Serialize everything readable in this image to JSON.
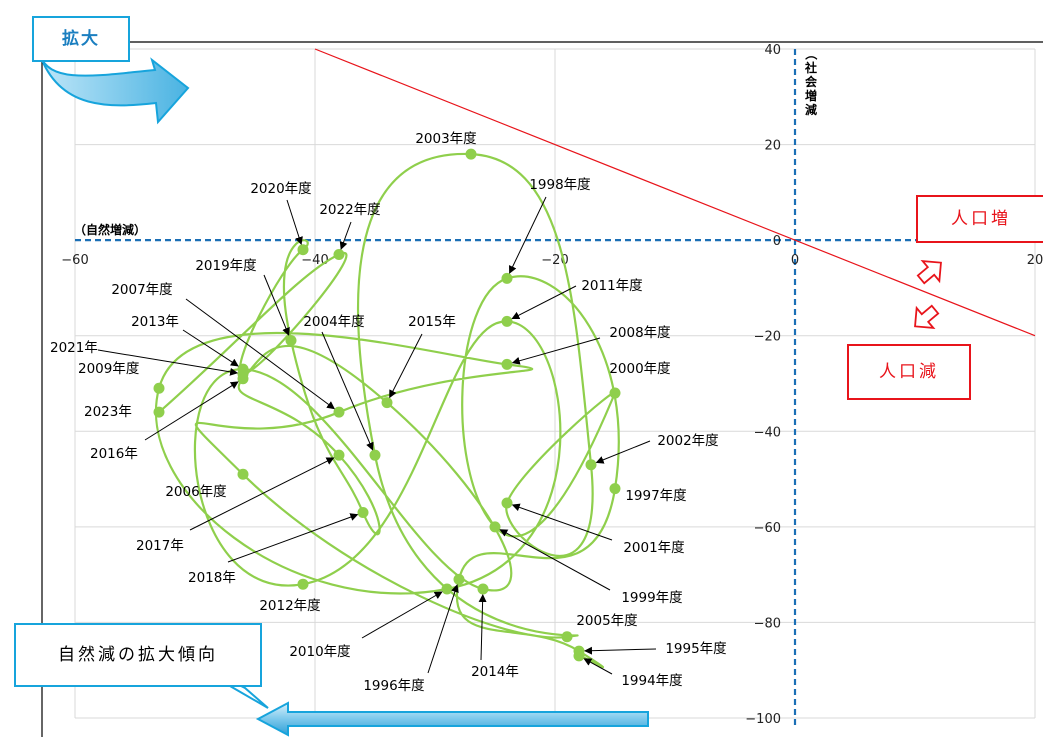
{
  "chart_data": {
    "type": "scatter",
    "xlabel": "（自然増減）",
    "ylabel": "（社会増減",
    "xlim": [
      -60,
      20
    ],
    "ylim": [
      -100,
      40
    ],
    "x_ticks": [
      -60,
      -40,
      -20,
      0,
      20
    ],
    "y_ticks": [
      40,
      20,
      0,
      -20,
      -40,
      -60,
      -80,
      -100
    ],
    "connected": true,
    "line_color": "#8fcf4c",
    "marker_color": "#8fcf4c",
    "balance_line": {
      "from": [
        -40,
        40
      ],
      "to": [
        20,
        -20
      ],
      "color": "#e8141b"
    },
    "points": [
      {
        "year": "1994年度",
        "x": -18,
        "y": -87
      },
      {
        "year": "1995年度",
        "x": -18,
        "y": -86
      },
      {
        "year": "1996年度",
        "x": -28,
        "y": -71
      },
      {
        "year": "1997年度",
        "x": -15,
        "y": -52
      },
      {
        "year": "1998年度",
        "x": -24,
        "y": -8
      },
      {
        "year": "1999年度",
        "x": -25,
        "y": -60
      },
      {
        "year": "2000年度",
        "x": -15,
        "y": -32
      },
      {
        "year": "2001年度",
        "x": -24,
        "y": -55
      },
      {
        "year": "2002年度",
        "x": -17,
        "y": -47
      },
      {
        "year": "2003年度",
        "x": -27,
        "y": 18
      },
      {
        "year": "2004年度",
        "x": -35,
        "y": -45
      },
      {
        "year": "2005年度",
        "x": -19,
        "y": -83
      },
      {
        "year": "2006年度",
        "x": -46,
        "y": -49
      },
      {
        "year": "2007年度",
        "x": -38,
        "y": -36
      },
      {
        "year": "2008年度",
        "x": -24,
        "y": -26
      },
      {
        "year": "2009年度",
        "x": -53,
        "y": -31
      },
      {
        "year": "2010年度",
        "x": -29,
        "y": -73
      },
      {
        "year": "2011年度",
        "x": -24,
        "y": -17
      },
      {
        "year": "2012年度",
        "x": -41,
        "y": -72
      },
      {
        "year": "2013年",
        "x": -46,
        "y": -27
      },
      {
        "year": "2014年",
        "x": -26,
        "y": -73
      },
      {
        "year": "2015年",
        "x": -34,
        "y": -34
      },
      {
        "year": "2016年",
        "x": -46,
        "y": -29
      },
      {
        "year": "2017年",
        "x": -38,
        "y": -45
      },
      {
        "year": "2018年",
        "x": -36,
        "y": -57
      },
      {
        "year": "2019年度",
        "x": -42,
        "y": -21
      },
      {
        "year": "2020年度",
        "x": -41,
        "y": -2
      },
      {
        "year": "2021年",
        "x": -46,
        "y": -28
      },
      {
        "year": "2022年度",
        "x": -38,
        "y": -3
      },
      {
        "year": "2023年",
        "x": -53,
        "y": -36
      }
    ],
    "order": [
      "1994年度",
      "1995年度",
      "1996年度",
      "1997年度",
      "1998年度",
      "1999年度",
      "2000年度",
      "2001年度",
      "2002年度",
      "2003年度",
      "2004年度",
      "2005年度",
      "2006年度",
      "2007年度",
      "2008年度",
      "2009年度",
      "2010年度",
      "2011年度",
      "2012年度",
      "2013年",
      "2014年",
      "2015年",
      "2016年",
      "2017年",
      "2018年",
      "2019年度",
      "2020年度",
      "2021年",
      "2022年度",
      "2023年"
    ]
  },
  "annotations": {
    "expand": "拡大",
    "pop_increase": "人口増",
    "pop_decrease": "人口減",
    "natural_decline_trend": "自然減の拡大傾向",
    "social_label_chars": [
      "（",
      "社",
      "会",
      "増",
      "減"
    ],
    "natural_label": "（自然増減）"
  },
  "colors": {
    "red": "#e8141b",
    "blue_axis": "#1b6fb5",
    "cyan": "#17a4dc",
    "green": "#8fcf4c"
  }
}
